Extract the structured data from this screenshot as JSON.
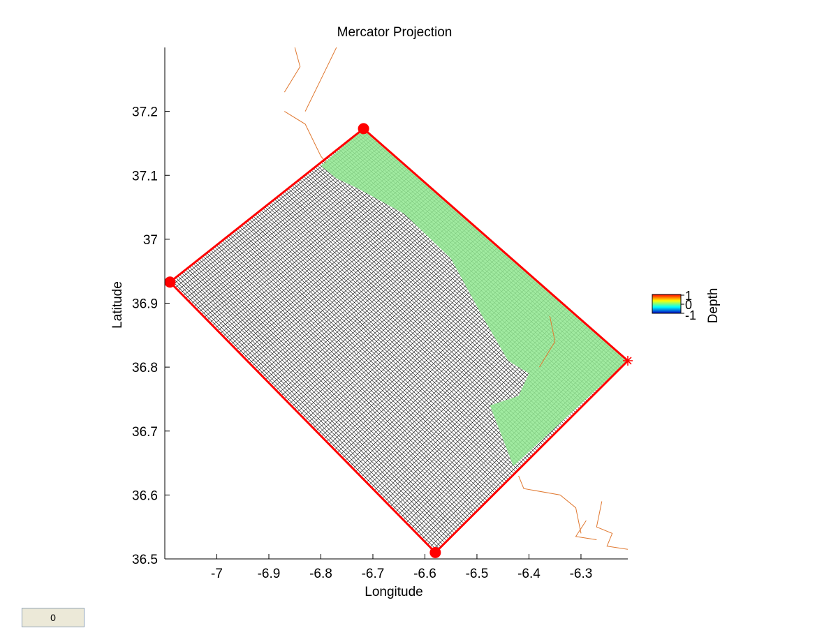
{
  "chart_data": {
    "type": "scatter",
    "title": "Mercator Projection",
    "xlabel": "Longitude",
    "ylabel": "Latitude",
    "xlim": [
      -7.1,
      -6.21
    ],
    "ylim": [
      36.5,
      37.3
    ],
    "xticks": [
      -7,
      -6.9,
      -6.8,
      -6.7,
      -6.6,
      -6.5,
      -6.4,
      -6.3
    ],
    "yticks": [
      36.5,
      36.6,
      36.7,
      36.8,
      36.9,
      37,
      37.1,
      37.2
    ],
    "xtick_labels": [
      "-7",
      "-6.9",
      "-6.8",
      "-6.7",
      "-6.6",
      "-6.5",
      "-6.4",
      "-6.3"
    ],
    "ytick_labels": [
      "36.5",
      "36.6",
      "36.7",
      "36.8",
      "36.9",
      "37",
      "37.1",
      "37.2"
    ],
    "grid": false,
    "domain_corners": [
      {
        "x": -7.09,
        "y": 36.933
      },
      {
        "x": -6.718,
        "y": 37.173
      },
      {
        "x": -6.21,
        "y": 36.81
      },
      {
        "x": -6.58,
        "y": 36.51
      }
    ],
    "corner_markers": [
      {
        "x": -7.09,
        "y": 36.933,
        "marker": "dot"
      },
      {
        "x": -6.718,
        "y": 37.173,
        "marker": "dot"
      },
      {
        "x": -6.58,
        "y": 36.51,
        "marker": "dot"
      },
      {
        "x": -6.21,
        "y": 36.81,
        "marker": "star"
      }
    ],
    "land_region": [
      {
        "x": -6.8,
        "y": 37.115
      },
      {
        "x": -6.718,
        "y": 37.173
      },
      {
        "x": -6.21,
        "y": 36.81
      },
      {
        "x": -6.43,
        "y": 36.645
      },
      {
        "x": -6.475,
        "y": 36.74
      },
      {
        "x": -6.42,
        "y": 36.755
      },
      {
        "x": -6.4,
        "y": 36.79
      },
      {
        "x": -6.44,
        "y": 36.81
      },
      {
        "x": -6.49,
        "y": 36.88
      },
      {
        "x": -6.55,
        "y": 36.97
      },
      {
        "x": -6.64,
        "y": 37.04
      },
      {
        "x": -6.73,
        "y": 37.08
      },
      {
        "x": -6.77,
        "y": 37.095
      }
    ],
    "coastline_segments": [
      [
        {
          "x": -6.87,
          "y": 37.2
        },
        {
          "x": -6.83,
          "y": 37.18
        },
        {
          "x": -6.8,
          "y": 37.13
        },
        {
          "x": -6.79,
          "y": 37.12
        }
      ],
      [
        {
          "x": -6.87,
          "y": 37.23
        },
        {
          "x": -6.84,
          "y": 37.27
        },
        {
          "x": -6.85,
          "y": 37.3
        }
      ],
      [
        {
          "x": -6.83,
          "y": 37.2
        },
        {
          "x": -6.8,
          "y": 37.25
        },
        {
          "x": -6.77,
          "y": 37.3
        }
      ],
      [
        {
          "x": -6.36,
          "y": 36.88
        },
        {
          "x": -6.35,
          "y": 36.84
        },
        {
          "x": -6.38,
          "y": 36.8
        }
      ],
      [
        {
          "x": -6.42,
          "y": 36.63
        },
        {
          "x": -6.41,
          "y": 36.61
        },
        {
          "x": -6.34,
          "y": 36.6
        },
        {
          "x": -6.31,
          "y": 36.58
        },
        {
          "x": -6.3,
          "y": 36.54
        }
      ],
      [
        {
          "x": -6.26,
          "y": 36.59
        },
        {
          "x": -6.27,
          "y": 36.55
        },
        {
          "x": -6.24,
          "y": 36.54
        },
        {
          "x": -6.25,
          "y": 36.52
        },
        {
          "x": -6.21,
          "y": 36.515
        }
      ],
      [
        {
          "x": -6.29,
          "y": 36.56
        },
        {
          "x": -6.31,
          "y": 36.535
        },
        {
          "x": -6.27,
          "y": 36.53
        }
      ]
    ],
    "grid_lines_per_direction": 100,
    "colorbar": {
      "label": "Depth",
      "ticks": [
        "1",
        "0",
        "-1"
      ],
      "colors": [
        "#ff0000",
        "#ffff00",
        "#00ffff",
        "#0000c0"
      ]
    },
    "colors": {
      "domain_boundary": "#ff0000",
      "land": "#90e890",
      "mesh": "#000000",
      "coastline": "#e07830"
    }
  },
  "value_box": {
    "text": "0"
  }
}
